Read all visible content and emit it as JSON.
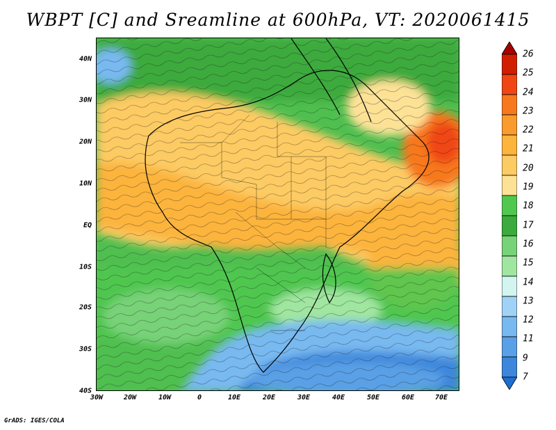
{
  "title": "WBPT [C] and Sreamline at 600hPa, VT: 2020061415",
  "map": {
    "lat_labels": [
      "40N",
      "30N",
      "20N",
      "10N",
      "EQ",
      "10S",
      "20S",
      "30S",
      "40S"
    ],
    "lon_labels": [
      "30W",
      "20W",
      "10W",
      "0",
      "10E",
      "20E",
      "30E",
      "40E",
      "50E",
      "60E",
      "70E"
    ],
    "lat_range": [
      -40,
      45
    ],
    "lon_range": [
      -30,
      75
    ],
    "field": "Wet-bulb potential temperature",
    "overlay": "streamlines"
  },
  "colorbar": {
    "labels": [
      "26",
      "25",
      "24",
      "23",
      "22",
      "21",
      "20",
      "19",
      "18",
      "17",
      "16",
      "15",
      "14",
      "13",
      "12",
      "11",
      "9",
      "7"
    ],
    "colors": [
      "#a50000",
      "#d21e00",
      "#f04614",
      "#f8781e",
      "#fa9b2d",
      "#fcb43c",
      "#fdcb64",
      "#fde296",
      "#50c850",
      "#3caa3c",
      "#78d278",
      "#a0e6a0",
      "#d2f5f0",
      "#a0d2f5",
      "#78b9f0",
      "#5aa0e6",
      "#3c87dc",
      "#1e6ed2"
    ]
  },
  "footer": "GrADS: IGES/COLA"
}
